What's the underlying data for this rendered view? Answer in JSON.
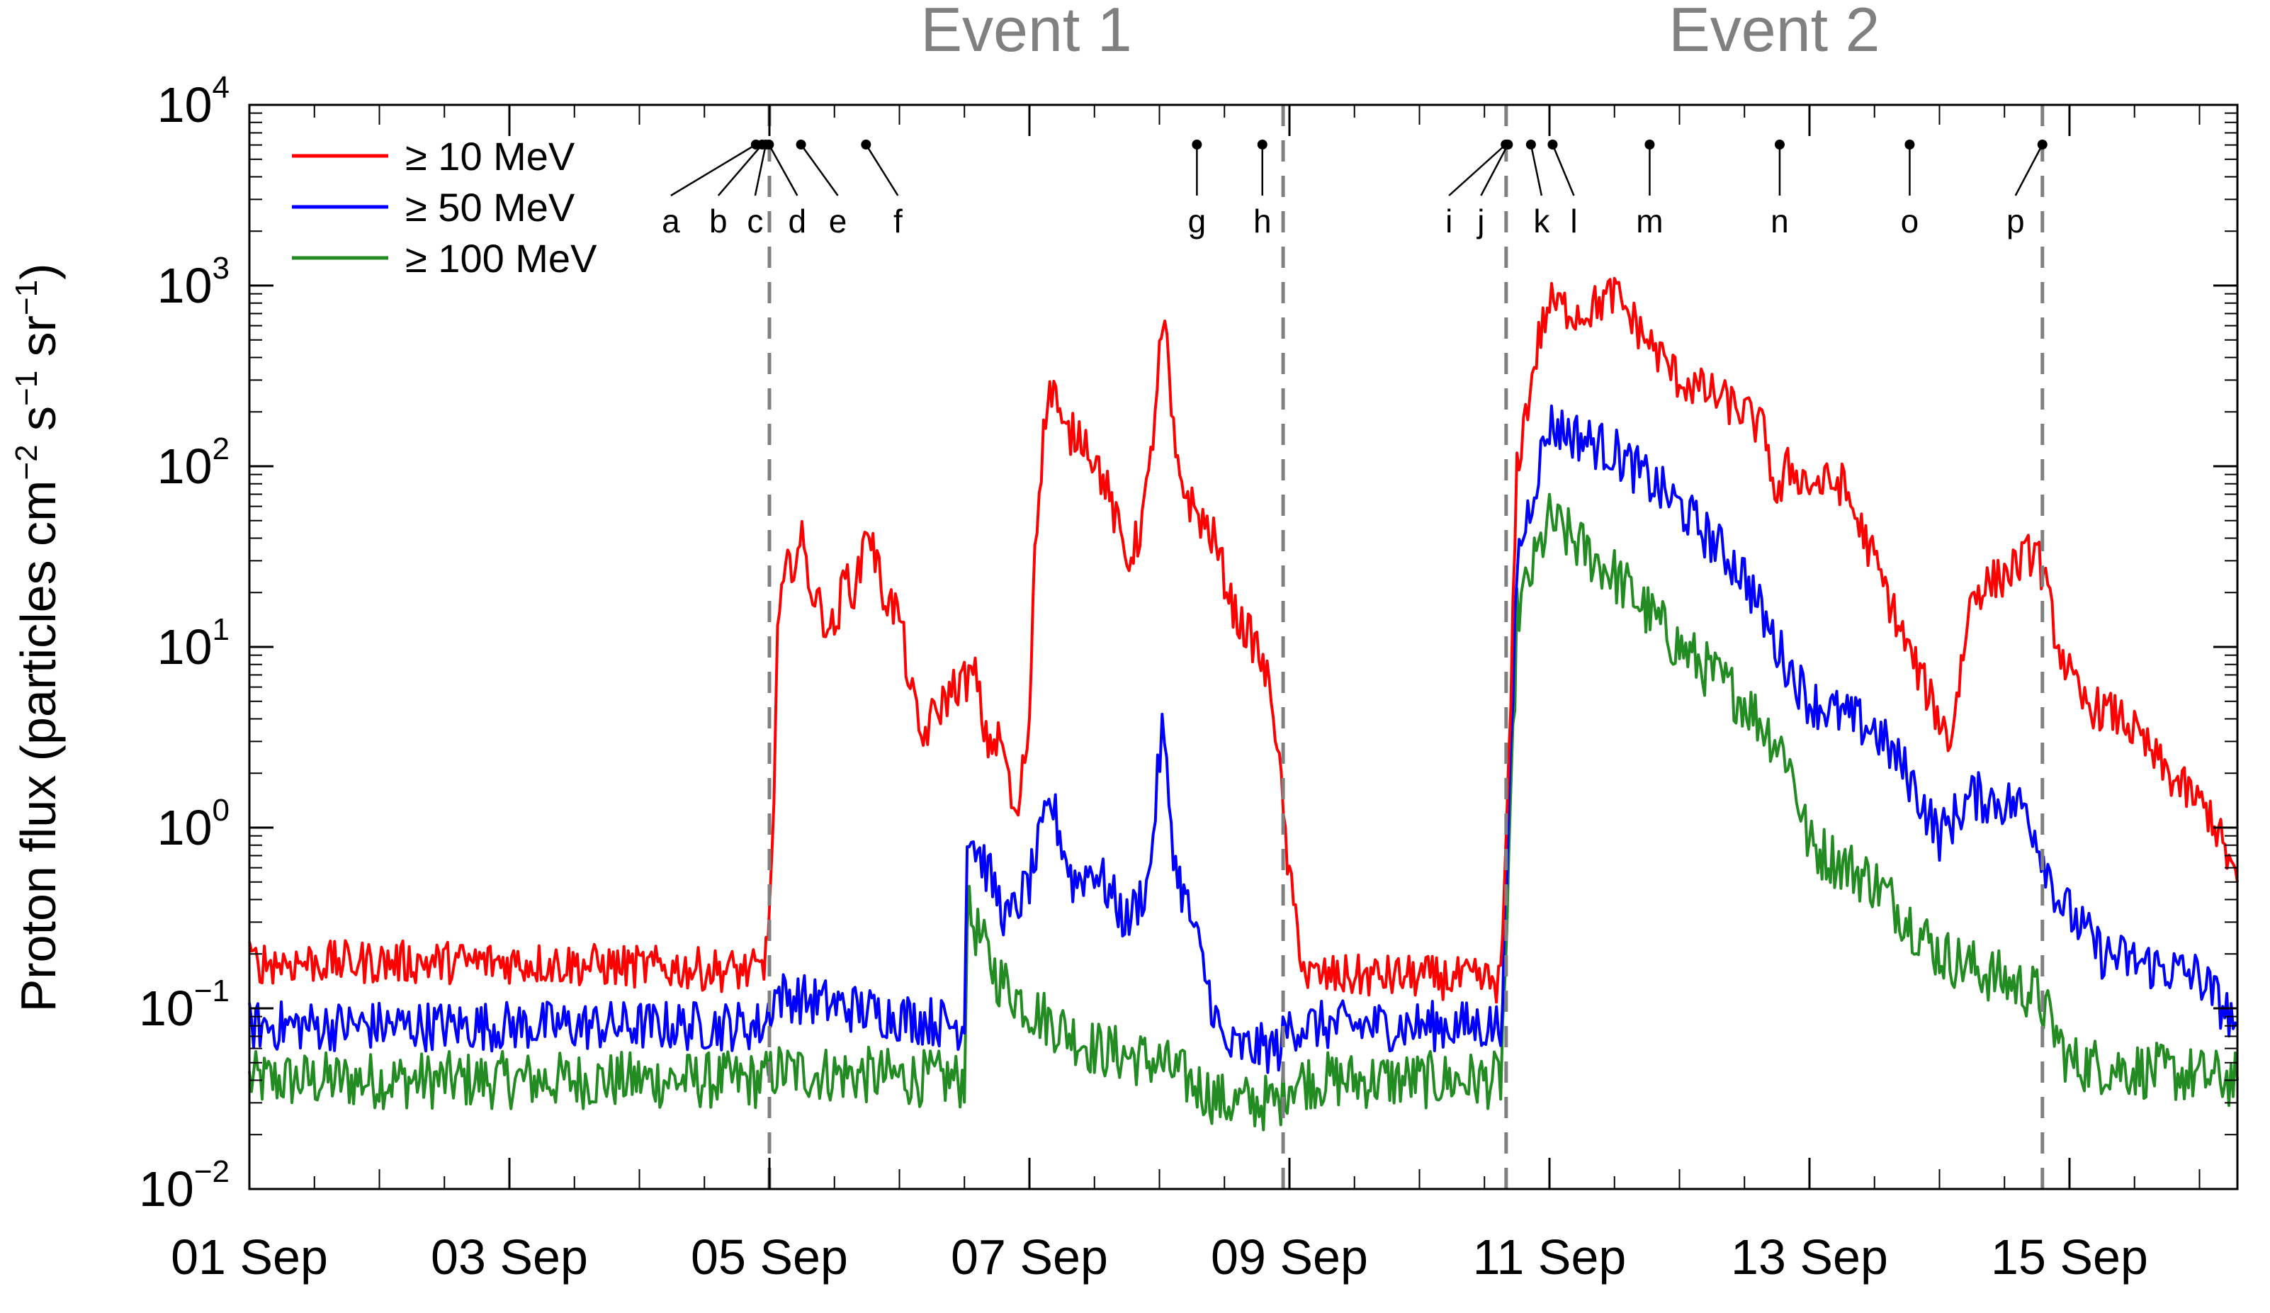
{
  "chart_data": {
    "type": "line",
    "title": "",
    "xlabel": "",
    "ylabel": {
      "prefix": "Proton flux (particles cm",
      "sup1": "−2",
      "mid1": " s",
      "sup2": "−1",
      "mid2": " sr",
      "sup3": "−1",
      "suffix": ")"
    },
    "yscale": "log",
    "ylim": [
      0.01,
      10000
    ],
    "y_ticks": [
      {
        "value": 0.01,
        "base": "10",
        "exp": "−2"
      },
      {
        "value": 0.1,
        "base": "10",
        "exp": "−1"
      },
      {
        "value": 1,
        "base": "10",
        "exp": "0"
      },
      {
        "value": 10,
        "base": "10",
        "exp": "1"
      },
      {
        "value": 100,
        "base": "10",
        "exp": "2"
      },
      {
        "value": 1000,
        "base": "10",
        "exp": "3"
      },
      {
        "value": 10000,
        "base": "10",
        "exp": "4"
      }
    ],
    "xlim": [
      "2017-09-01",
      "2017-09-16T07:00"
    ],
    "x_tick_labels": [
      {
        "date": "2017-09-01",
        "label": "01 Sep"
      },
      {
        "date": "2017-09-03",
        "label": "03 Sep"
      },
      {
        "date": "2017-09-05",
        "label": "05 Sep"
      },
      {
        "date": "2017-09-07",
        "label": "07 Sep"
      },
      {
        "date": "2017-09-09",
        "label": "09 Sep"
      },
      {
        "date": "2017-09-11",
        "label": "11 Sep"
      },
      {
        "date": "2017-09-13",
        "label": "13 Sep"
      },
      {
        "date": "2017-09-15",
        "label": "15 Sep"
      }
    ],
    "legend": "top-left",
    "event_boundaries": [
      "2017-09-05T00:00",
      "2017-09-08T22:50",
      "2017-09-10T16:00",
      "2017-09-14T19:00"
    ],
    "events": [
      {
        "label": "Event 1",
        "start": "2017-09-05T00:00",
        "end": "2017-09-08T22:50"
      },
      {
        "label": "Event 2",
        "start": "2017-09-10T16:00",
        "end": "2017-09-14T19:00"
      }
    ],
    "markers": [
      {
        "label": "a",
        "time": "2017-09-04T21:30"
      },
      {
        "label": "b",
        "time": "2017-09-04T22:40"
      },
      {
        "label": "c",
        "time": "2017-09-04T23:20"
      },
      {
        "label": "d",
        "time": "2017-09-04T23:55"
      },
      {
        "label": "e",
        "time": "2017-09-05T05:50"
      },
      {
        "label": "f",
        "time": "2017-09-05T17:50"
      },
      {
        "label": "g",
        "time": "2017-09-08T06:55"
      },
      {
        "label": "h",
        "time": "2017-09-08T19:00"
      },
      {
        "label": "i",
        "time": "2017-09-10T15:55"
      },
      {
        "label": "j",
        "time": "2017-09-10T16:20"
      },
      {
        "label": "k",
        "time": "2017-09-10T20:35"
      },
      {
        "label": "l",
        "time": "2017-09-11T00:35"
      },
      {
        "label": "m",
        "time": "2017-09-11T18:30"
      },
      {
        "label": "n",
        "time": "2017-09-12T18:30"
      },
      {
        "label": "o",
        "time": "2017-09-13T18:30"
      },
      {
        "label": "p",
        "time": "2017-09-14T19:00"
      }
    ],
    "series": [
      {
        "name": "≥ 10 MeV",
        "color": "#ff0000",
        "points": [
          [
            "2017-09-01T00:00",
            0.18
          ],
          [
            "2017-09-03T00:00",
            0.18
          ],
          [
            "2017-09-04T23:00",
            0.16
          ],
          [
            "2017-09-05T00:30",
            0.6
          ],
          [
            "2017-09-05T01:30",
            12
          ],
          [
            "2017-09-05T03:00",
            25
          ],
          [
            "2017-09-05T06:00",
            38
          ],
          [
            "2017-09-05T08:00",
            20
          ],
          [
            "2017-09-05T10:00",
            15
          ],
          [
            "2017-09-05T12:00",
            12
          ],
          [
            "2017-09-05T14:00",
            25
          ],
          [
            "2017-09-05T16:00",
            20
          ],
          [
            "2017-09-05T18:00",
            50
          ],
          [
            "2017-09-05T21:00",
            20
          ],
          [
            "2017-09-06T00:00",
            15
          ],
          [
            "2017-09-06T02:00",
            6
          ],
          [
            "2017-09-06T04:00",
            3
          ],
          [
            "2017-09-06T06:00",
            4
          ],
          [
            "2017-09-06T10:00",
            6
          ],
          [
            "2017-09-06T14:00",
            7
          ],
          [
            "2017-09-06T16:00",
            3
          ],
          [
            "2017-09-06T19:00",
            3
          ],
          [
            "2017-09-06T21:30",
            1.0
          ],
          [
            "2017-09-07T00:00",
            4
          ],
          [
            "2017-09-07T01:00",
            40
          ],
          [
            "2017-09-07T03:00",
            200
          ],
          [
            "2017-09-07T04:30",
            300
          ],
          [
            "2017-09-07T06:00",
            150
          ],
          [
            "2017-09-07T10:00",
            150
          ],
          [
            "2017-09-07T14:00",
            80
          ],
          [
            "2017-09-07T18:00",
            30
          ],
          [
            "2017-09-07T20:00",
            40
          ],
          [
            "2017-09-07T22:00",
            80
          ],
          [
            "2017-09-08T00:00",
            400
          ],
          [
            "2017-09-08T01:00",
            600
          ],
          [
            "2017-09-08T03:00",
            100
          ],
          [
            "2017-09-08T06:00",
            60
          ],
          [
            "2017-09-08T10:00",
            40
          ],
          [
            "2017-09-08T14:00",
            15
          ],
          [
            "2017-09-08T18:00",
            10
          ],
          [
            "2017-09-08T21:00",
            5
          ],
          [
            "2017-09-09T00:00",
            0.5
          ],
          [
            "2017-09-09T03:00",
            0.15
          ],
          [
            "2017-09-10T00:00",
            0.15
          ],
          [
            "2017-09-10T15:00",
            0.14
          ],
          [
            "2017-09-10T16:30",
            2
          ],
          [
            "2017-09-10T18:00",
            100
          ],
          [
            "2017-09-10T22:00",
            500
          ],
          [
            "2017-09-11T00:00",
            800
          ],
          [
            "2017-09-11T06:00",
            700
          ],
          [
            "2017-09-11T12:00",
            900
          ],
          [
            "2017-09-11T18:00",
            500
          ],
          [
            "2017-09-12T00:00",
            300
          ],
          [
            "2017-09-12T06:00",
            250
          ],
          [
            "2017-09-12T12:00",
            200
          ],
          [
            "2017-09-12T16:00",
            150
          ],
          [
            "2017-09-12T18:00",
            60
          ],
          [
            "2017-09-12T20:00",
            100
          ],
          [
            "2017-09-13T00:00",
            80
          ],
          [
            "2017-09-13T06:00",
            80
          ],
          [
            "2017-09-13T12:00",
            30
          ],
          [
            "2017-09-13T18:00",
            10
          ],
          [
            "2017-09-14T00:00",
            4
          ],
          [
            "2017-09-14T02:00",
            3
          ],
          [
            "2017-09-14T06:00",
            20
          ],
          [
            "2017-09-14T12:00",
            25
          ],
          [
            "2017-09-14T18:00",
            35
          ],
          [
            "2017-09-14T22:00",
            10
          ],
          [
            "2017-09-15T02:00",
            5
          ],
          [
            "2017-09-15T10:00",
            4
          ],
          [
            "2017-09-15T18:00",
            2
          ],
          [
            "2017-09-16T02:00",
            1.2
          ],
          [
            "2017-09-16T07:00",
            0.5
          ]
        ]
      },
      {
        "name": "≥ 50 MeV",
        "color": "#0000ff",
        "points": [
          [
            "2017-09-01T00:00",
            0.08
          ],
          [
            "2017-09-04T23:00",
            0.08
          ],
          [
            "2017-09-05T01:00",
            0.12
          ],
          [
            "2017-09-06T00:00",
            0.09
          ],
          [
            "2017-09-06T12:00",
            0.08
          ],
          [
            "2017-09-06T12:30",
            1.0
          ],
          [
            "2017-09-06T16:00",
            0.6
          ],
          [
            "2017-09-06T20:00",
            0.3
          ],
          [
            "2017-09-07T00:00",
            0.5
          ],
          [
            "2017-09-07T04:00",
            1.4
          ],
          [
            "2017-09-07T08:00",
            0.5
          ],
          [
            "2017-09-07T12:00",
            0.6
          ],
          [
            "2017-09-07T18:00",
            0.3
          ],
          [
            "2017-09-07T22:00",
            0.5
          ],
          [
            "2017-09-08T00:30",
            3.5
          ],
          [
            "2017-09-08T03:00",
            0.6
          ],
          [
            "2017-09-08T06:00",
            0.3
          ],
          [
            "2017-09-08T10:00",
            0.1
          ],
          [
            "2017-09-08T12:00",
            0.06
          ],
          [
            "2017-09-08T22:00",
            0.06
          ],
          [
            "2017-09-09T00:00",
            0.08
          ],
          [
            "2017-09-10T15:00",
            0.08
          ],
          [
            "2017-09-10T16:30",
            1.0
          ],
          [
            "2017-09-10T18:00",
            30
          ],
          [
            "2017-09-10T22:00",
            100
          ],
          [
            "2017-09-11T00:00",
            170
          ],
          [
            "2017-09-11T12:00",
            120
          ],
          [
            "2017-09-12T00:00",
            60
          ],
          [
            "2017-09-12T12:00",
            25
          ],
          [
            "2017-09-12T18:00",
            10
          ],
          [
            "2017-09-13T00:00",
            5
          ],
          [
            "2017-09-13T12:00",
            3.5
          ],
          [
            "2017-09-13T18:00",
            2
          ],
          [
            "2017-09-14T00:00",
            0.9
          ],
          [
            "2017-09-14T06:00",
            1.5
          ],
          [
            "2017-09-14T16:00",
            1.3
          ],
          [
            "2017-09-14T22:00",
            0.4
          ],
          [
            "2017-09-15T06:00",
            0.2
          ],
          [
            "2017-09-16T00:00",
            0.15
          ],
          [
            "2017-09-16T07:00",
            0.08
          ]
        ]
      },
      {
        "name": "≥ 100 MeV",
        "color": "#228b22",
        "points": [
          [
            "2017-09-01T00:00",
            0.04
          ],
          [
            "2017-09-04T23:00",
            0.04
          ],
          [
            "2017-09-05T01:00",
            0.045
          ],
          [
            "2017-09-06T12:00",
            0.04
          ],
          [
            "2017-09-06T12:30",
            0.35
          ],
          [
            "2017-09-06T18:00",
            0.15
          ],
          [
            "2017-09-07T00:00",
            0.1
          ],
          [
            "2017-09-07T12:00",
            0.06
          ],
          [
            "2017-09-08T00:00",
            0.05
          ],
          [
            "2017-09-08T12:00",
            0.03
          ],
          [
            "2017-09-08T22:00",
            0.03
          ],
          [
            "2017-09-09T00:00",
            0.04
          ],
          [
            "2017-09-10T15:00",
            0.04
          ],
          [
            "2017-09-10T16:30",
            0.5
          ],
          [
            "2017-09-10T18:00",
            15
          ],
          [
            "2017-09-11T00:00",
            50
          ],
          [
            "2017-09-11T12:00",
            25
          ],
          [
            "2017-09-12T00:00",
            10
          ],
          [
            "2017-09-12T12:00",
            5
          ],
          [
            "2017-09-12T20:00",
            2.5
          ],
          [
            "2017-09-13T00:00",
            0.8
          ],
          [
            "2017-09-13T12:00",
            0.5
          ],
          [
            "2017-09-14T00:00",
            0.2
          ],
          [
            "2017-09-14T18:00",
            0.12
          ],
          [
            "2017-09-15T00:00",
            0.05
          ],
          [
            "2017-09-16T07:00",
            0.04
          ]
        ]
      }
    ]
  }
}
